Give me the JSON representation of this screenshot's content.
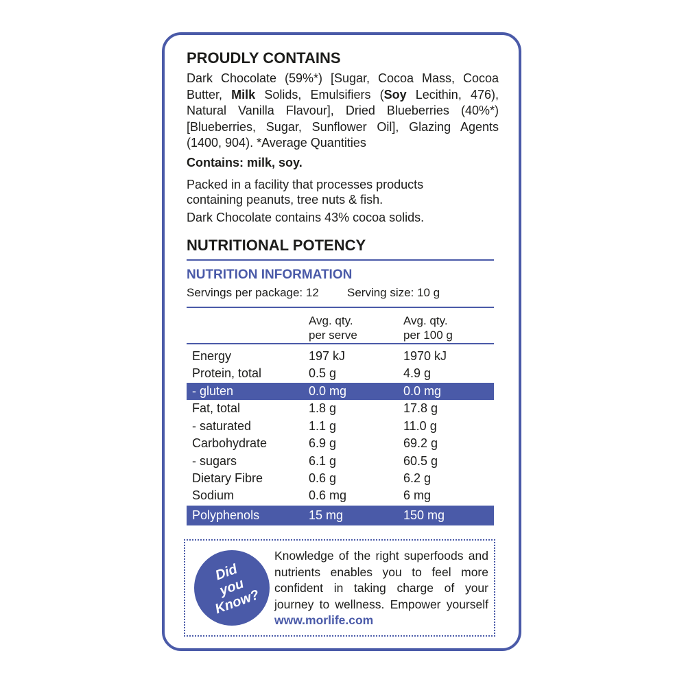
{
  "ingredients": {
    "title": "PROUDLY CONTAINS",
    "text": [
      "Dark Chocolate (59%*) [Sugar, Cocoa Mass, Cocoa Butter, ",
      "Milk",
      " Solids, Emulsifiers (",
      "Soy",
      " Lecithin, 476), Natural Vanilla Flavour], Dried Blueberries (40%*) [Blueberries, Sugar, Sunflower Oil], Glazing Agents (1400, 904). *Average Quantities"
    ],
    "allergens": "Contains: milk, soy.",
    "facility": "Packed in a facility that processes products containing peanuts, tree nuts & fish.",
    "cocoa": "Dark Chocolate contains 43% cocoa solids."
  },
  "nutrition": {
    "section_title": "NUTRITIONAL POTENCY",
    "table_title": "NUTRITION INFORMATION",
    "servings": "Servings per package: 12",
    "serving_size": "Serving size: 10 g",
    "headers": [
      [
        "Avg. qty.",
        "per serve"
      ],
      [
        "Avg. qty.",
        "per 100 g"
      ]
    ],
    "rows": [
      [
        "Energy",
        "197 kJ",
        "1970 kJ"
      ],
      [
        "Protein, total",
        "0.5 g",
        "4.9 g"
      ],
      [
        "- gluten",
        "0.0 mg",
        "0.0 mg"
      ],
      [
        "Fat, total",
        "1.8 g",
        "17.8 g"
      ],
      [
        "- saturated",
        "1.1 g",
        "11.0 g"
      ],
      [
        "Carbohydrate",
        "6.9 g",
        "69.2 g"
      ],
      [
        "- sugars",
        "6.1 g",
        "60.5 g"
      ],
      [
        "Dietary Fibre",
        "0.6 g",
        "6.2 g"
      ],
      [
        "Sodium",
        "0.6 mg",
        "6 mg"
      ],
      [
        "Polyphenols",
        "15 mg",
        "150 mg"
      ]
    ]
  },
  "callout": {
    "badge": [
      "Did",
      "you",
      "Know?"
    ],
    "text": "Knowledge of the right superfoods and nutrients enables you to feel more confident in taking charge of your journey to wellness. Empower yourself ",
    "link": "www.morlife.com"
  }
}
